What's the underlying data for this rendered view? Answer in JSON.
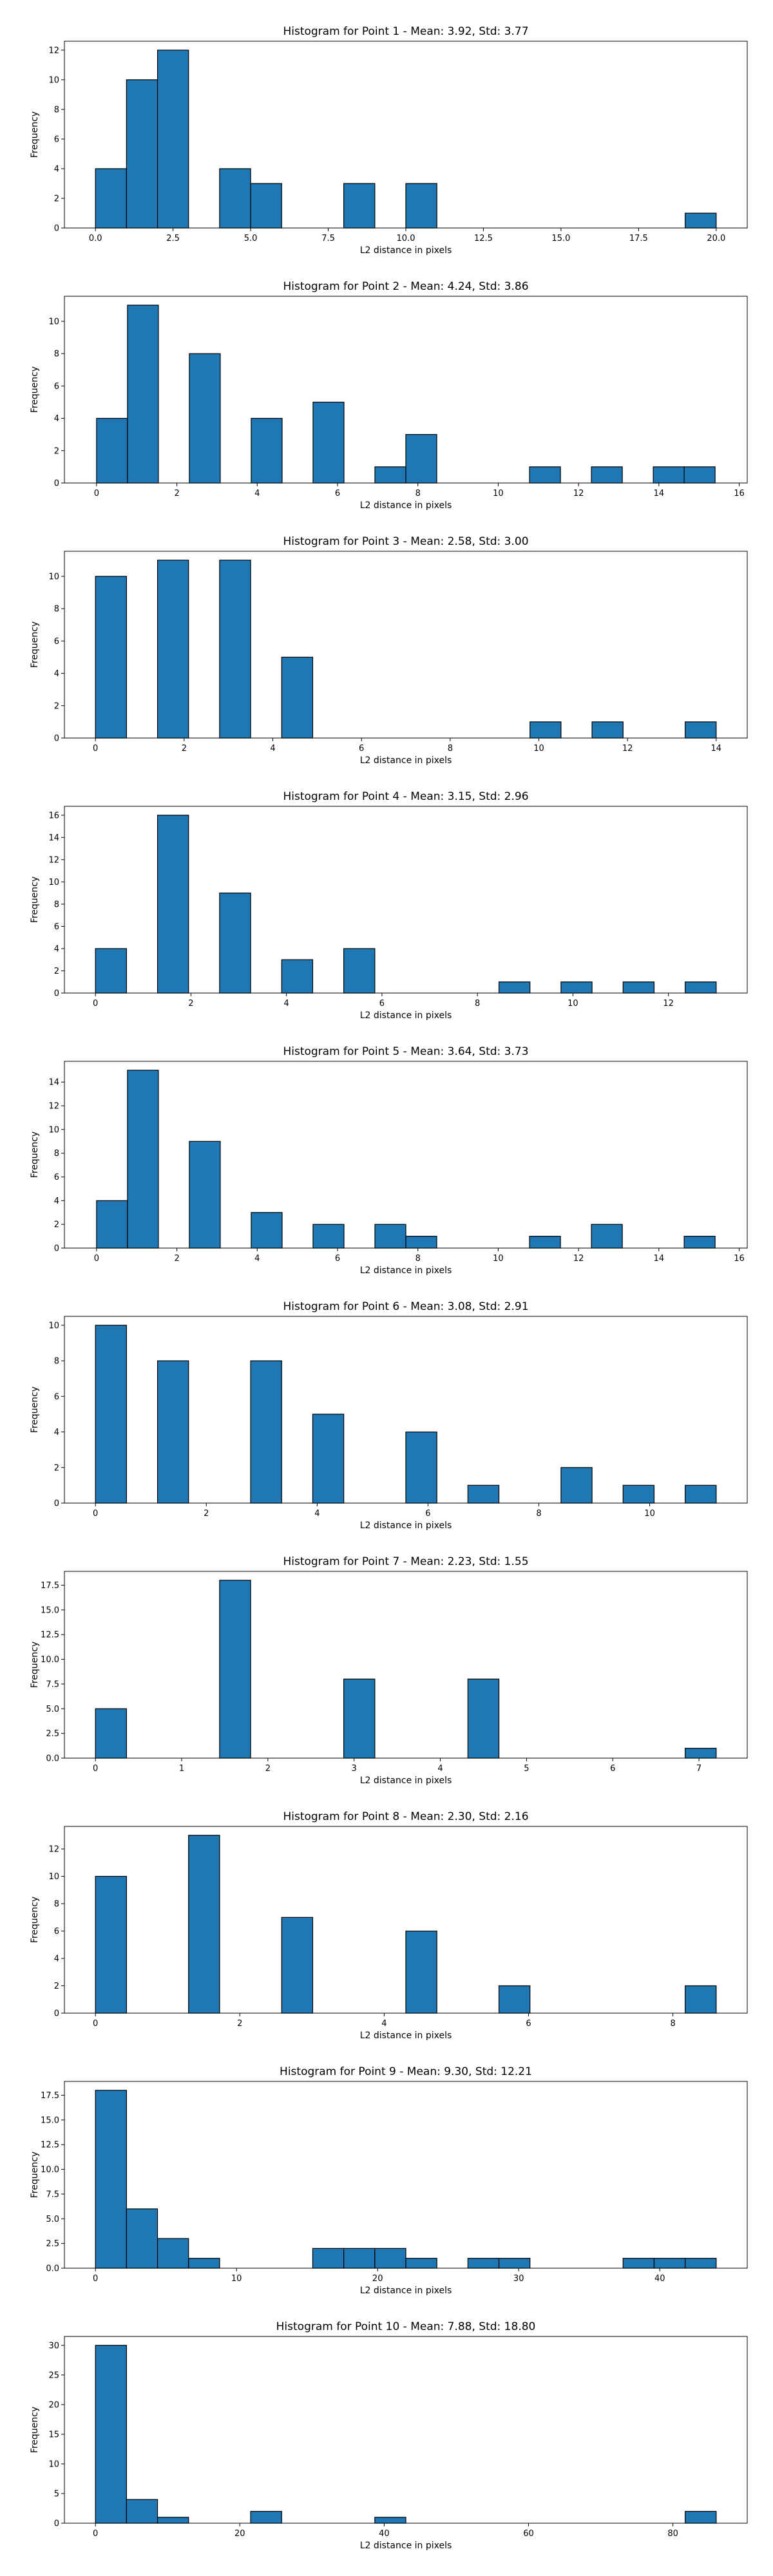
{
  "style": {
    "bar_color": "#1f77b4",
    "edge_color": "#000000"
  },
  "chart_data": [
    {
      "type": "bar",
      "title": "Histogram for Point 1 - Mean: 3.92, Std: 3.77",
      "xlabel": "L2 distance in pixels",
      "ylabel": "Frequency",
      "xlim": [
        -1,
        21
      ],
      "ylim": [
        0,
        12.6
      ],
      "xticks": [
        0,
        2.5,
        5,
        7.5,
        10,
        12.5,
        15,
        17.5,
        20
      ],
      "xtick_labels": [
        "0.0",
        "2.5",
        "5.0",
        "7.5",
        "10.0",
        "12.5",
        "15.0",
        "17.5",
        "20.0"
      ],
      "yticks": [
        0,
        2,
        4,
        6,
        8,
        10,
        12
      ],
      "ytick_labels": [
        "0",
        "2",
        "4",
        "6",
        "8",
        "10",
        "12"
      ],
      "bin_edges": [
        0,
        1,
        2,
        3,
        4,
        5,
        6,
        7,
        8,
        9,
        10,
        11,
        12,
        13,
        14,
        15,
        16,
        17,
        18,
        19,
        20
      ],
      "counts": [
        4,
        10,
        12,
        0,
        4,
        3,
        0,
        0,
        3,
        0,
        3,
        0,
        0,
        0,
        0,
        0,
        0,
        0,
        0,
        1
      ]
    },
    {
      "type": "bar",
      "title": "Histogram for Point 2 - Mean: 4.24, Std: 3.86",
      "xlabel": "L2 distance in pixels",
      "ylabel": "Frequency",
      "xlim": [
        -0.8,
        16.2
      ],
      "ylim": [
        0,
        11.55
      ],
      "xticks": [
        0,
        2,
        4,
        6,
        8,
        10,
        12,
        14,
        16
      ],
      "xtick_labels": [
        "0",
        "2",
        "4",
        "6",
        "8",
        "10",
        "12",
        "14",
        "16"
      ],
      "yticks": [
        0,
        2,
        4,
        6,
        8,
        10
      ],
      "ytick_labels": [
        "0",
        "2",
        "4",
        "6",
        "8",
        "10"
      ],
      "bin_edges": [
        0,
        0.77,
        1.54,
        2.31,
        3.08,
        3.85,
        4.62,
        5.39,
        6.16,
        6.93,
        7.7,
        8.47,
        9.24,
        10.01,
        10.78,
        11.55,
        12.32,
        13.09,
        13.86,
        14.63,
        15.4
      ],
      "counts": [
        4,
        11,
        0,
        8,
        0,
        4,
        0,
        5,
        0,
        1,
        3,
        0,
        0,
        0,
        1,
        0,
        1,
        0,
        1,
        1
      ]
    },
    {
      "type": "bar",
      "title": "Histogram for Point 3 - Mean: 2.58, Std: 3.00",
      "xlabel": "L2 distance in pixels",
      "ylabel": "Frequency",
      "xlim": [
        -0.7,
        14.7
      ],
      "ylim": [
        0,
        11.55
      ],
      "xticks": [
        0,
        2,
        4,
        6,
        8,
        10,
        12,
        14
      ],
      "xtick_labels": [
        "0",
        "2",
        "4",
        "6",
        "8",
        "10",
        "12",
        "14"
      ],
      "yticks": [
        0,
        2,
        4,
        6,
        8,
        10
      ],
      "ytick_labels": [
        "0",
        "2",
        "4",
        "6",
        "8",
        "10"
      ],
      "bin_edges": [
        0,
        0.7,
        1.4,
        2.1,
        2.8,
        3.5,
        4.2,
        4.9,
        5.6,
        6.3,
        7.0,
        7.7,
        8.4,
        9.1,
        9.8,
        10.5,
        11.2,
        11.9,
        12.6,
        13.3,
        14.0
      ],
      "counts": [
        10,
        0,
        11,
        0,
        11,
        0,
        5,
        0,
        0,
        0,
        0,
        0,
        0,
        0,
        1,
        0,
        1,
        0,
        0,
        1
      ]
    },
    {
      "type": "bar",
      "title": "Histogram for Point 4 - Mean: 3.15, Std: 2.96",
      "xlabel": "L2 distance in pixels",
      "ylabel": "Frequency",
      "xlim": [
        -0.65,
        13.65
      ],
      "ylim": [
        0,
        16.8
      ],
      "xticks": [
        0,
        2,
        4,
        6,
        8,
        10,
        12
      ],
      "xtick_labels": [
        "0",
        "2",
        "4",
        "6",
        "8",
        "10",
        "12"
      ],
      "yticks": [
        0,
        2,
        4,
        6,
        8,
        10,
        12,
        14,
        16
      ],
      "ytick_labels": [
        "0",
        "2",
        "4",
        "6",
        "8",
        "10",
        "12",
        "14",
        "16"
      ],
      "bin_edges": [
        0,
        0.65,
        1.3,
        1.95,
        2.6,
        3.25,
        3.9,
        4.55,
        5.2,
        5.85,
        6.5,
        7.15,
        7.8,
        8.45,
        9.1,
        9.75,
        10.4,
        11.05,
        11.7,
        12.35,
        13.0
      ],
      "counts": [
        4,
        0,
        16,
        0,
        9,
        0,
        3,
        0,
        4,
        0,
        0,
        0,
        0,
        1,
        0,
        1,
        0,
        1,
        0,
        1
      ]
    },
    {
      "type": "bar",
      "title": "Histogram for Point 5 - Mean: 3.64, Std: 3.73",
      "xlabel": "L2 distance in pixels",
      "ylabel": "Frequency",
      "xlim": [
        -0.8,
        16.2
      ],
      "ylim": [
        0,
        15.75
      ],
      "xticks": [
        0,
        2,
        4,
        6,
        8,
        10,
        12,
        14,
        16
      ],
      "xtick_labels": [
        "0",
        "2",
        "4",
        "6",
        "8",
        "10",
        "12",
        "14",
        "16"
      ],
      "yticks": [
        0,
        2,
        4,
        6,
        8,
        10,
        12,
        14
      ],
      "ytick_labels": [
        "0",
        "2",
        "4",
        "6",
        "8",
        "10",
        "12",
        "14"
      ],
      "bin_edges": [
        0,
        0.77,
        1.54,
        2.31,
        3.08,
        3.85,
        4.62,
        5.39,
        6.16,
        6.93,
        7.7,
        8.47,
        9.24,
        10.01,
        10.78,
        11.55,
        12.32,
        13.09,
        13.86,
        14.63,
        15.4
      ],
      "counts": [
        4,
        15,
        0,
        9,
        0,
        3,
        0,
        2,
        0,
        2,
        1,
        0,
        0,
        0,
        1,
        0,
        2,
        0,
        0,
        1
      ]
    },
    {
      "type": "bar",
      "title": "Histogram for Point 6 - Mean: 3.08, Std: 2.91",
      "xlabel": "L2 distance in pixels",
      "ylabel": "Frequency",
      "xlim": [
        -0.56,
        11.76
      ],
      "ylim": [
        0,
        10.5
      ],
      "xticks": [
        0,
        2,
        4,
        6,
        8,
        10
      ],
      "xtick_labels": [
        "0",
        "2",
        "4",
        "6",
        "8",
        "10"
      ],
      "yticks": [
        0,
        2,
        4,
        6,
        8,
        10
      ],
      "ytick_labels": [
        "0",
        "2",
        "4",
        "6",
        "8",
        "10"
      ],
      "bin_edges": [
        0,
        0.56,
        1.12,
        1.68,
        2.24,
        2.8,
        3.36,
        3.92,
        4.48,
        5.04,
        5.6,
        6.16,
        6.72,
        7.28,
        7.84,
        8.4,
        8.96,
        9.52,
        10.08,
        10.64,
        11.2
      ],
      "counts": [
        10,
        0,
        8,
        0,
        0,
        8,
        0,
        5,
        0,
        0,
        4,
        0,
        1,
        0,
        0,
        2,
        0,
        1,
        0,
        1
      ]
    },
    {
      "type": "bar",
      "title": "Histogram for Point 7 - Mean: 2.23, Std: 1.55",
      "xlabel": "L2 distance in pixels",
      "ylabel": "Frequency",
      "xlim": [
        -0.36,
        7.56
      ],
      "ylim": [
        0,
        18.9
      ],
      "xticks": [
        0,
        1,
        2,
        3,
        4,
        5,
        6,
        7
      ],
      "xtick_labels": [
        "0",
        "1",
        "2",
        "3",
        "4",
        "5",
        "6",
        "7"
      ],
      "yticks": [
        0,
        2.5,
        5,
        7.5,
        10,
        12.5,
        15,
        17.5
      ],
      "ytick_labels": [
        "0.0",
        "2.5",
        "5.0",
        "7.5",
        "10.0",
        "12.5",
        "15.0",
        "17.5"
      ],
      "bin_edges": [
        0,
        0.36,
        0.72,
        1.08,
        1.44,
        1.8,
        2.16,
        2.52,
        2.88,
        3.24,
        3.6,
        3.96,
        4.32,
        4.68,
        5.04,
        5.4,
        5.76,
        6.12,
        6.48,
        6.84,
        7.2
      ],
      "counts": [
        5,
        0,
        0,
        0,
        18,
        0,
        0,
        0,
        8,
        0,
        0,
        0,
        8,
        0,
        0,
        0,
        0,
        0,
        0,
        1
      ]
    },
    {
      "type": "bar",
      "title": "Histogram for Point 8 - Mean: 2.30, Std: 2.16",
      "xlabel": "L2 distance in pixels",
      "ylabel": "Frequency",
      "xlim": [
        -0.43,
        9.03
      ],
      "ylim": [
        0,
        13.65
      ],
      "xticks": [
        0,
        2,
        4,
        6,
        8
      ],
      "xtick_labels": [
        "0",
        "2",
        "4",
        "6",
        "8"
      ],
      "yticks": [
        0,
        2,
        4,
        6,
        8,
        10,
        12
      ],
      "ytick_labels": [
        "0",
        "2",
        "4",
        "6",
        "8",
        "10",
        "12"
      ],
      "bin_edges": [
        0,
        0.43,
        0.86,
        1.29,
        1.72,
        2.15,
        2.58,
        3.01,
        3.44,
        3.87,
        4.3,
        4.73,
        5.16,
        5.59,
        6.02,
        6.45,
        6.88,
        7.31,
        7.74,
        8.17,
        8.6
      ],
      "counts": [
        10,
        0,
        0,
        13,
        0,
        0,
        7,
        0,
        0,
        0,
        6,
        0,
        0,
        2,
        0,
        0,
        0,
        0,
        0,
        2
      ]
    },
    {
      "type": "bar",
      "title": "Histogram for Point 9 - Mean: 9.30, Std: 12.21",
      "xlabel": "L2 distance in pixels",
      "ylabel": "Frequency",
      "xlim": [
        -2.2,
        46.2
      ],
      "ylim": [
        0,
        18.9
      ],
      "xticks": [
        0,
        10,
        20,
        30,
        40
      ],
      "xtick_labels": [
        "0",
        "10",
        "20",
        "30",
        "40"
      ],
      "yticks": [
        0,
        2.5,
        5,
        7.5,
        10,
        12.5,
        15,
        17.5
      ],
      "ytick_labels": [
        "0.0",
        "2.5",
        "5.0",
        "7.5",
        "10.0",
        "12.5",
        "15.0",
        "17.5"
      ],
      "bin_edges": [
        0,
        2.2,
        4.4,
        6.6,
        8.8,
        11,
        13.2,
        15.4,
        17.6,
        19.8,
        22,
        24.2,
        26.4,
        28.6,
        30.8,
        33,
        35.2,
        37.4,
        39.6,
        41.8,
        44
      ],
      "counts": [
        18,
        6,
        3,
        1,
        0,
        0,
        0,
        2,
        2,
        2,
        1,
        0,
        1,
        1,
        0,
        0,
        0,
        1,
        1,
        1
      ]
    },
    {
      "type": "bar",
      "title": "Histogram for Point 10 - Mean: 7.88, Std: 18.80",
      "xlabel": "L2 distance in pixels",
      "ylabel": "Frequency",
      "xlim": [
        -4.3,
        90.3
      ],
      "ylim": [
        0,
        31.5
      ],
      "xticks": [
        0,
        20,
        40,
        60,
        80
      ],
      "xtick_labels": [
        "0",
        "20",
        "40",
        "60",
        "80"
      ],
      "yticks": [
        0,
        5,
        10,
        15,
        20,
        25,
        30
      ],
      "ytick_labels": [
        "0",
        "5",
        "10",
        "15",
        "20",
        "25",
        "30"
      ],
      "bin_edges": [
        0,
        4.3,
        8.6,
        12.9,
        17.2,
        21.5,
        25.8,
        30.1,
        34.4,
        38.7,
        43,
        47.3,
        51.6,
        55.9,
        60.2,
        64.5,
        68.8,
        73.1,
        77.4,
        81.7,
        86
      ],
      "counts": [
        30,
        4,
        1,
        0,
        0,
        2,
        0,
        0,
        0,
        1,
        0,
        0,
        0,
        0,
        0,
        0,
        0,
        0,
        0,
        2
      ]
    }
  ]
}
